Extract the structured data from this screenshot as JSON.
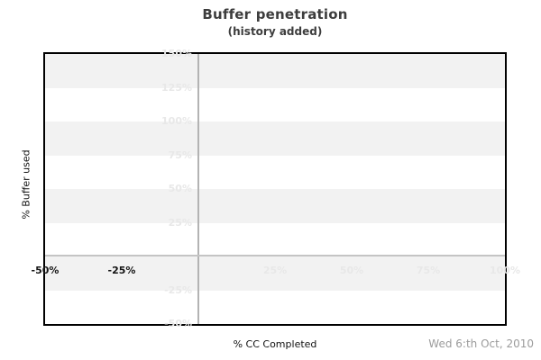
{
  "colors": {
    "background": "#ffffff",
    "title_text": "#3d3d3d",
    "axis_text": "#111111",
    "dark_label": "#141414",
    "faint_label": "#e8e8e8",
    "stripe": "#f2f2f2",
    "zero_line_v": "#b3b3b3",
    "zero_line_h": "#c4c4c4",
    "border": "#000000",
    "date_text": "#9b9b9b"
  },
  "footer": {
    "date": "Wed 6:th Oct, 2010"
  },
  "chart_data": {
    "type": "line",
    "title": "Buffer penetration",
    "subtitle": "(history added)",
    "xlabel": "% CC Completed",
    "ylabel": "% Buffer used",
    "xlim": [
      -50,
      100
    ],
    "ylim": [
      -50,
      150
    ],
    "x_ticks": [
      {
        "value": -50,
        "label": "-50%",
        "emphasis": true
      },
      {
        "value": -25,
        "label": "-25%",
        "emphasis": true
      },
      {
        "value": 25,
        "label": "25%",
        "emphasis": false
      },
      {
        "value": 50,
        "label": "50%",
        "emphasis": false
      },
      {
        "value": 75,
        "label": "75%",
        "emphasis": false
      },
      {
        "value": 100,
        "label": "100%",
        "emphasis": false
      }
    ],
    "y_ticks": [
      {
        "value": 150,
        "label": "150%"
      },
      {
        "value": 125,
        "label": "125%"
      },
      {
        "value": 100,
        "label": "100%"
      },
      {
        "value": 75,
        "label": "75%"
      },
      {
        "value": 50,
        "label": "50%"
      },
      {
        "value": 25,
        "label": "25%"
      },
      {
        "value": -25,
        "label": "-25%"
      },
      {
        "value": -50,
        "label": "-50%"
      }
    ],
    "stripe_bands": [
      [
        150,
        125
      ],
      [
        100,
        75
      ],
      [
        50,
        25
      ],
      [
        0,
        -25
      ]
    ],
    "zero_lines": {
      "x_at": 0,
      "y_at": 0
    },
    "series": [],
    "grid": "striped-bands",
    "legend": "none"
  }
}
